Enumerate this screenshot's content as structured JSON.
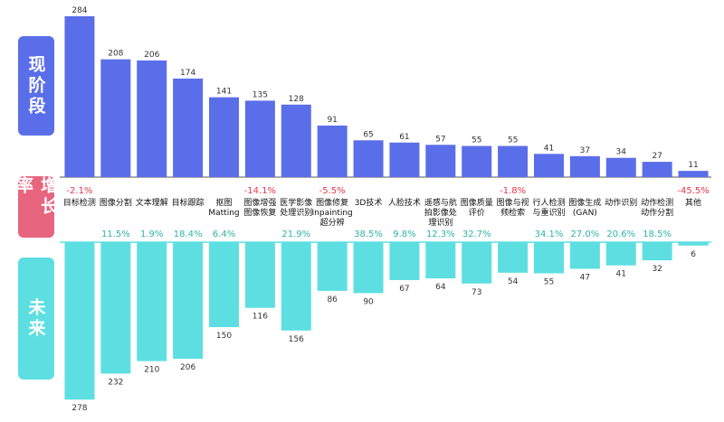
{
  "chart_data": {
    "type": "bar",
    "categories": [
      "目标检测",
      "图像分割",
      "文本理解",
      "目标跟踪",
      "抠图\nMatting",
      "图像增强\n图像恢复",
      "医学影像\n处理识别",
      "图像修复\nInpainting\n超分辨",
      "3D技术",
      "人脸技术",
      "遥感与航\n拍影像处\n理识别",
      "图像质量\n评价",
      "图像与视\n频检索",
      "行人检测\n与重识别",
      "图像生成\n(GAN)",
      "动作识别",
      "动作检测\n动作分割",
      "其他"
    ],
    "series": [
      {
        "name": "现阶段",
        "color": "#5b6ee9",
        "values": [
          284,
          208,
          206,
          174,
          141,
          135,
          128,
          91,
          65,
          61,
          57,
          55,
          55,
          41,
          37,
          34,
          27,
          11
        ]
      },
      {
        "name": "未来",
        "color": "#5ddfe2",
        "values": [
          278,
          232,
          210,
          206,
          150,
          116,
          156,
          86,
          90,
          67,
          64,
          73,
          54,
          55,
          47,
          41,
          32,
          6
        ]
      }
    ],
    "growth": {
      "name": "增长率",
      "color": "#e8657f",
      "values": [
        -2.1,
        11.5,
        1.9,
        18.4,
        6.4,
        -14.1,
        21.9,
        -5.5,
        38.5,
        9.8,
        12.3,
        32.7,
        -1.8,
        34.1,
        27.0,
        20.6,
        18.5,
        -45.5
      ],
      "value_labels": [
        "-2.1%",
        "11.5%",
        "1.9%",
        "18.4%",
        "6.4%",
        "-14.1%",
        "21.9%",
        "-5.5%",
        "38.5%",
        "9.8%",
        "12.3%",
        "32.7%",
        "-1.8%",
        "34.1%",
        "27.0%",
        "20.6%",
        "18.5%",
        "-45.5%"
      ]
    }
  }
}
